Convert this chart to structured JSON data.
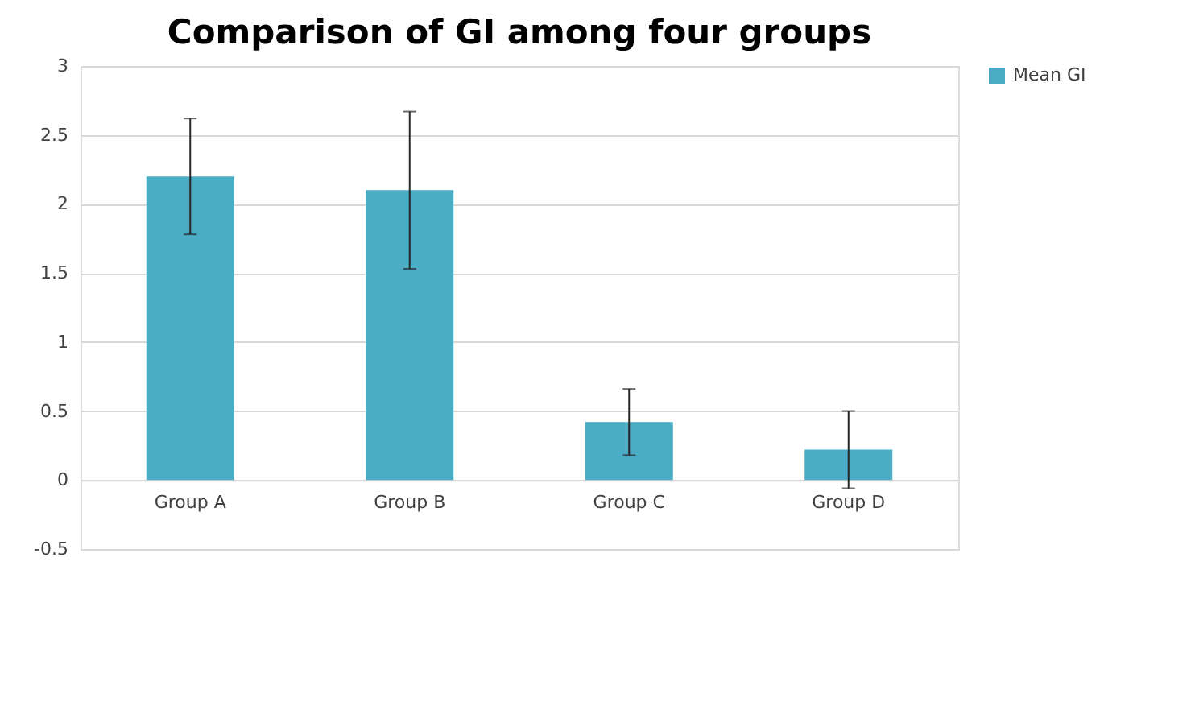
{
  "chart_data": {
    "type": "bar",
    "title": "Comparison of GI among four groups",
    "categories": [
      "Group A",
      "Group B",
      "Group C",
      "Group D"
    ],
    "series": [
      {
        "name": "Mean GI",
        "color": "#4bacc6",
        "values": [
          2.2,
          2.1,
          0.42,
          0.22
        ],
        "errors": [
          0.42,
          0.57,
          0.24,
          0.28
        ]
      }
    ],
    "ylim": [
      -0.5,
      3
    ],
    "yticks": [
      -0.5,
      0,
      0.5,
      1,
      1.5,
      2,
      2.5,
      3
    ],
    "grid": "y",
    "legend": "right"
  }
}
